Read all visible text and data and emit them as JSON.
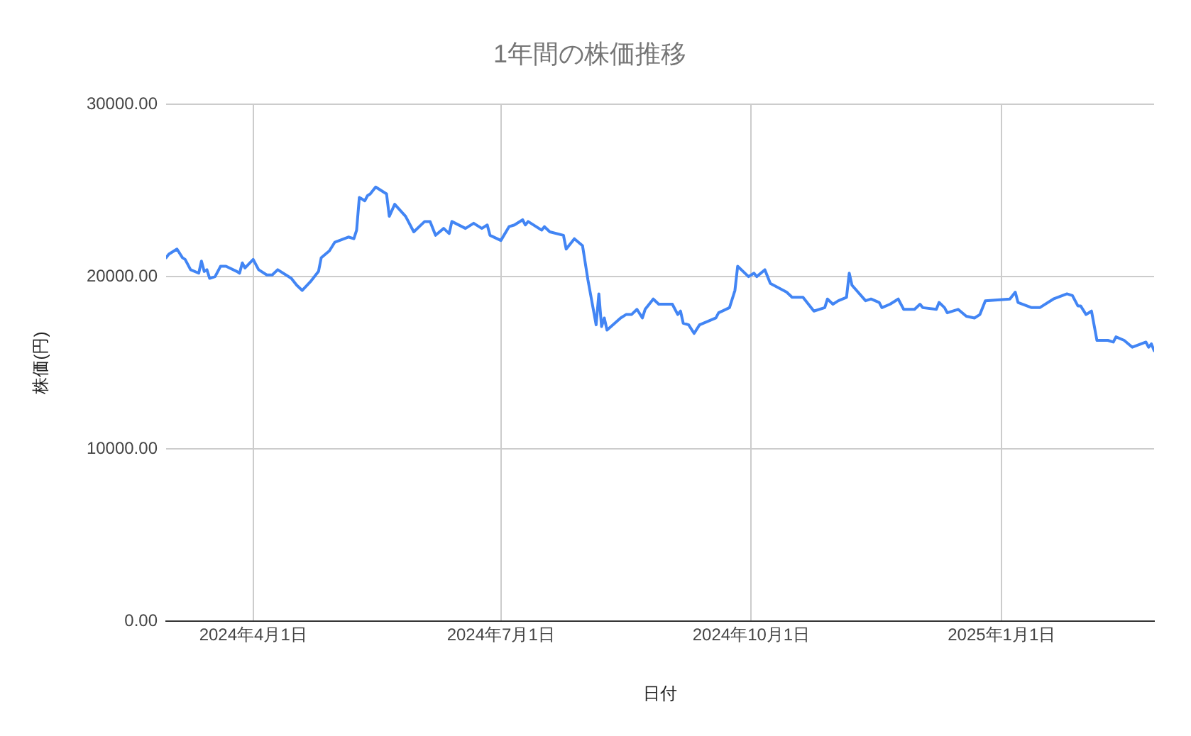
{
  "chart_data": {
    "type": "line",
    "title": "1年間の株価推移",
    "xlabel": "日付",
    "ylabel": "株価(円)",
    "xlim": [
      "2024-02-29",
      "2025-02-26"
    ],
    "xticks": [
      {
        "value": "2024-04-01",
        "label": "2024年4月1日"
      },
      {
        "value": "2024-07-01",
        "label": "2024年7月1日"
      },
      {
        "value": "2024-10-01",
        "label": "2024年10月1日"
      },
      {
        "value": "2025-01-01",
        "label": "2025年1月1日"
      }
    ],
    "ylim": [
      0,
      30000
    ],
    "yticks": [
      {
        "value": 0,
        "label": "0.00"
      },
      {
        "value": 10000,
        "label": "10000.00"
      },
      {
        "value": 20000,
        "label": "20000.00"
      },
      {
        "value": 30000,
        "label": "30000.00"
      }
    ],
    "grid": true,
    "legend": false,
    "marker": "none",
    "line_style": "solid",
    "x": [
      "2024-02-29",
      "2024-03-01",
      "2024-03-04",
      "2024-03-06",
      "2024-03-07",
      "2024-03-09",
      "2024-03-12",
      "2024-03-13",
      "2024-03-14",
      "2024-03-15",
      "2024-03-16",
      "2024-03-18",
      "2024-03-20",
      "2024-03-22",
      "2024-03-26",
      "2024-03-27",
      "2024-03-28",
      "2024-03-29",
      "2024-04-01",
      "2024-04-03",
      "2024-04-06",
      "2024-04-08",
      "2024-04-10",
      "2024-04-15",
      "2024-04-17",
      "2024-04-19",
      "2024-04-22",
      "2024-04-25",
      "2024-04-26",
      "2024-04-29",
      "2024-05-01",
      "2024-05-06",
      "2024-05-08",
      "2024-05-09",
      "2024-05-10",
      "2024-05-12",
      "2024-05-13",
      "2024-05-14",
      "2024-05-16",
      "2024-05-20",
      "2024-05-21",
      "2024-05-23",
      "2024-05-27",
      "2024-05-30",
      "2024-06-03",
      "2024-06-05",
      "2024-06-07",
      "2024-06-10",
      "2024-06-12",
      "2024-06-13",
      "2024-06-18",
      "2024-06-21",
      "2024-06-24",
      "2024-06-26",
      "2024-06-27",
      "2024-07-01",
      "2024-07-04",
      "2024-07-06",
      "2024-07-09",
      "2024-07-10",
      "2024-07-11",
      "2024-07-16",
      "2024-07-17",
      "2024-07-19",
      "2024-07-24",
      "2024-07-25",
      "2024-07-28",
      "2024-07-31",
      "2024-08-02",
      "2024-08-05",
      "2024-08-06",
      "2024-08-07",
      "2024-08-08",
      "2024-08-09",
      "2024-08-14",
      "2024-08-16",
      "2024-08-18",
      "2024-08-20",
      "2024-08-22",
      "2024-08-23",
      "2024-08-26",
      "2024-08-28",
      "2024-09-02",
      "2024-09-04",
      "2024-09-05",
      "2024-09-06",
      "2024-09-08",
      "2024-09-10",
      "2024-09-12",
      "2024-09-18",
      "2024-09-19",
      "2024-09-23",
      "2024-09-25",
      "2024-09-26",
      "2024-09-30",
      "2024-10-02",
      "2024-10-03",
      "2024-10-06",
      "2024-10-08",
      "2024-10-14",
      "2024-10-16",
      "2024-10-20",
      "2024-10-24",
      "2024-10-28",
      "2024-10-29",
      "2024-10-31",
      "2024-11-02",
      "2024-11-05",
      "2024-11-06",
      "2024-11-07",
      "2024-11-12",
      "2024-11-14",
      "2024-11-17",
      "2024-11-18",
      "2024-11-21",
      "2024-11-24",
      "2024-11-26",
      "2024-11-30",
      "2024-12-02",
      "2024-12-03",
      "2024-12-08",
      "2024-12-09",
      "2024-12-11",
      "2024-12-12",
      "2024-12-16",
      "2024-12-19",
      "2024-12-22",
      "2024-12-24",
      "2024-12-26",
      "2025-01-04",
      "2025-01-06",
      "2025-01-07",
      "2025-01-12",
      "2025-01-15",
      "2025-01-20",
      "2025-01-25",
      "2025-01-27",
      "2025-01-29",
      "2025-01-30",
      "2025-02-01",
      "2025-02-03",
      "2025-02-05",
      "2025-02-09",
      "2025-02-11",
      "2025-02-12",
      "2025-02-15",
      "2025-02-18",
      "2025-02-23",
      "2025-02-24",
      "2025-02-25",
      "2025-02-26"
    ],
    "series": [
      {
        "color": "#4285f4",
        "values": [
          21100,
          21300,
          21600,
          21100,
          21000,
          20400,
          20200,
          20900,
          20300,
          20400,
          19900,
          20000,
          20600,
          20600,
          20300,
          20200,
          20800,
          20500,
          21000,
          20400,
          20100,
          20100,
          20400,
          19900,
          19500,
          19200,
          19700,
          20300,
          21100,
          21500,
          22000,
          22300,
          22200,
          22700,
          24600,
          24400,
          24700,
          24800,
          25200,
          24800,
          23500,
          24200,
          23500,
          22600,
          23200,
          23200,
          22400,
          22800,
          22500,
          23200,
          22800,
          23100,
          22800,
          23000,
          22400,
          22100,
          22900,
          23000,
          23300,
          23000,
          23200,
          22700,
          22900,
          22600,
          22400,
          21600,
          22200,
          21800,
          19800,
          17200,
          19000,
          17100,
          17600,
          16900,
          17600,
          17800,
          17800,
          18100,
          17600,
          18100,
          18700,
          18400,
          18400,
          17800,
          18000,
          17300,
          17200,
          16700,
          17200,
          17600,
          17900,
          18200,
          19200,
          20600,
          20000,
          20200,
          20000,
          20400,
          19600,
          19100,
          18800,
          18800,
          18000,
          18200,
          18700,
          18400,
          18600,
          18800,
          20200,
          19500,
          18600,
          18700,
          18500,
          18200,
          18400,
          18700,
          18100,
          18100,
          18400,
          18200,
          18100,
          18500,
          18200,
          17900,
          18100,
          17700,
          17600,
          17800,
          18600,
          18700,
          19100,
          18500,
          18200,
          18200,
          18700,
          19000,
          18900,
          18300,
          18300,
          17800,
          18000,
          16300,
          16300,
          16200,
          16500,
          16300,
          15900,
          16200,
          15900,
          16100,
          15700
        ]
      }
    ]
  }
}
